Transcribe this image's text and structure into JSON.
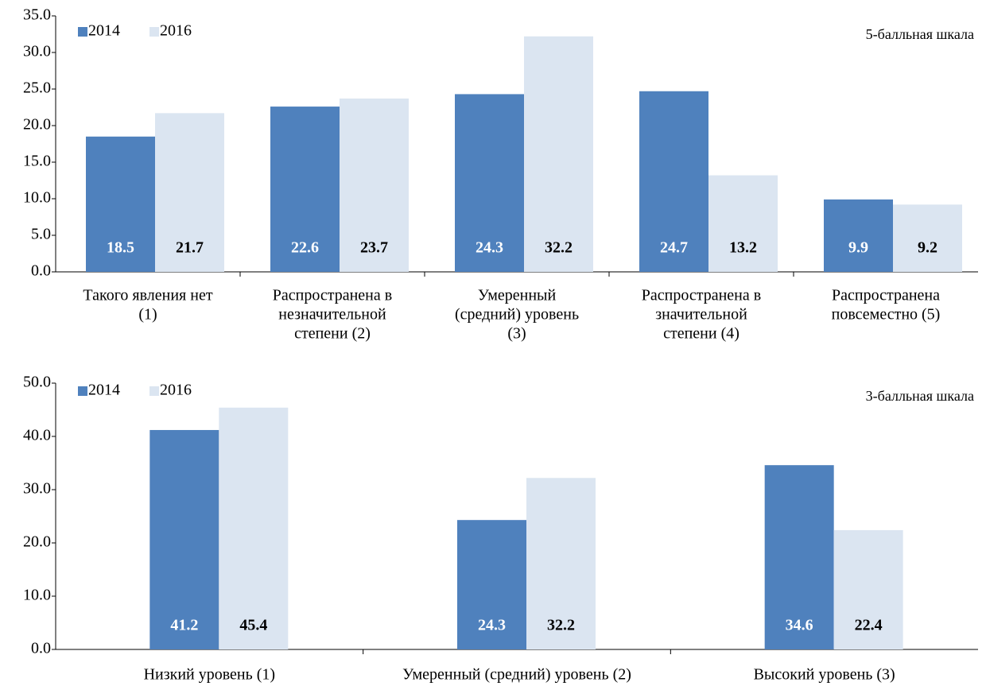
{
  "chart_data": [
    {
      "type": "bar",
      "annotation": "5-балльная шкала",
      "categories": [
        [
          "Такого явления нет",
          "(1)"
        ],
        [
          "Распространена в",
          "незначительной",
          "степени (2)"
        ],
        [
          "Умеренный",
          "(средний) уровень",
          "(3)"
        ],
        [
          "Распространена в",
          "значительной",
          "степени (4)"
        ],
        [
          "Распространена",
          "повсеместно (5)"
        ]
      ],
      "series": [
        {
          "name": "2014",
          "color": "#4f81bd",
          "label_color": "#ffffff",
          "values": [
            18.5,
            22.6,
            24.3,
            24.7,
            9.9
          ]
        },
        {
          "name": "2016",
          "color": "#dbe5f1",
          "label_color": "#000000",
          "values": [
            21.7,
            23.7,
            32.2,
            13.2,
            9.2
          ]
        }
      ],
      "ylim": [
        0,
        35
      ],
      "yticks": [
        {
          "value": 0,
          "label": "0.0"
        },
        {
          "value": 5,
          "label": "5.0"
        },
        {
          "value": 10,
          "label": "10.0"
        },
        {
          "value": 15,
          "label": "15.0"
        },
        {
          "value": 20,
          "label": "20.0"
        },
        {
          "value": 25,
          "label": "25.0"
        },
        {
          "value": 30,
          "label": "30.0"
        },
        {
          "value": 35,
          "label": "35.0"
        }
      ],
      "legend": "top-left"
    },
    {
      "type": "bar",
      "annotation": "3-балльная шкала",
      "categories": [
        [
          "Низкий уровень (1)"
        ],
        [
          "Умеренный (средний) уровень (2)"
        ],
        [
          "Высокий уровень (3)"
        ]
      ],
      "series": [
        {
          "name": "2014",
          "color": "#4f81bd",
          "label_color": "#ffffff",
          "values": [
            41.2,
            24.3,
            34.6
          ]
        },
        {
          "name": "2016",
          "color": "#dbe5f1",
          "label_color": "#000000",
          "values": [
            45.4,
            32.2,
            22.4
          ]
        }
      ],
      "ylim": [
        0,
        50
      ],
      "yticks": [
        {
          "value": 0,
          "label": "0.0"
        },
        {
          "value": 10,
          "label": "10.0"
        },
        {
          "value": 20,
          "label": "20.0"
        },
        {
          "value": 30,
          "label": "30.0"
        },
        {
          "value": 40,
          "label": "40.0"
        },
        {
          "value": 50,
          "label": "50.0"
        }
      ],
      "legend": "top-left"
    }
  ]
}
